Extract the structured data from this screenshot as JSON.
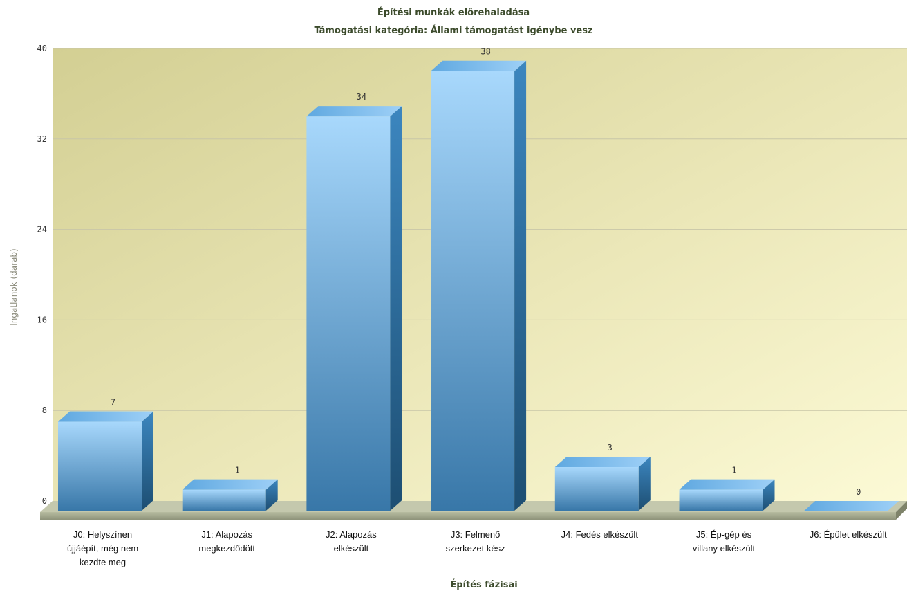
{
  "chart_data": {
    "type": "bar",
    "title": "Építési munkák előrehaladása",
    "subtitle": "Támogatási kategória: Állami támogatást igénybe vesz",
    "xlabel": "Építés fázisai",
    "ylabel": "Ingatlanok (darab)",
    "ylim": [
      0,
      40
    ],
    "yticks": [
      "0",
      "8",
      "16",
      "24",
      "32",
      "40"
    ],
    "grid": true,
    "categories": [
      [
        "J0: Helyszínen",
        "újjáépít, még nem",
        "kezdte meg"
      ],
      [
        "J1: Alapozás",
        "megkezdődött"
      ],
      [
        "J2: Alapozás",
        "elkészült"
      ],
      [
        "J3: Felmenő",
        "szerkezet kész"
      ],
      [
        "J4: Fedés elkészült"
      ],
      [
        "J5: Ép-gép és",
        "villany elkészült"
      ],
      [
        "J6: Épület elkészült"
      ]
    ],
    "values": [
      7,
      1,
      34,
      38,
      3,
      1,
      0
    ],
    "colors": {
      "plot_bg_start": "#d4d096",
      "plot_bg_end": "#fbf8d2",
      "bar_light": "#a6d6fb",
      "bar_dark": "#3577a9",
      "bar_side": "#2b6996",
      "bar_top": "#7fbde9",
      "floor": "#a8ad92"
    }
  }
}
